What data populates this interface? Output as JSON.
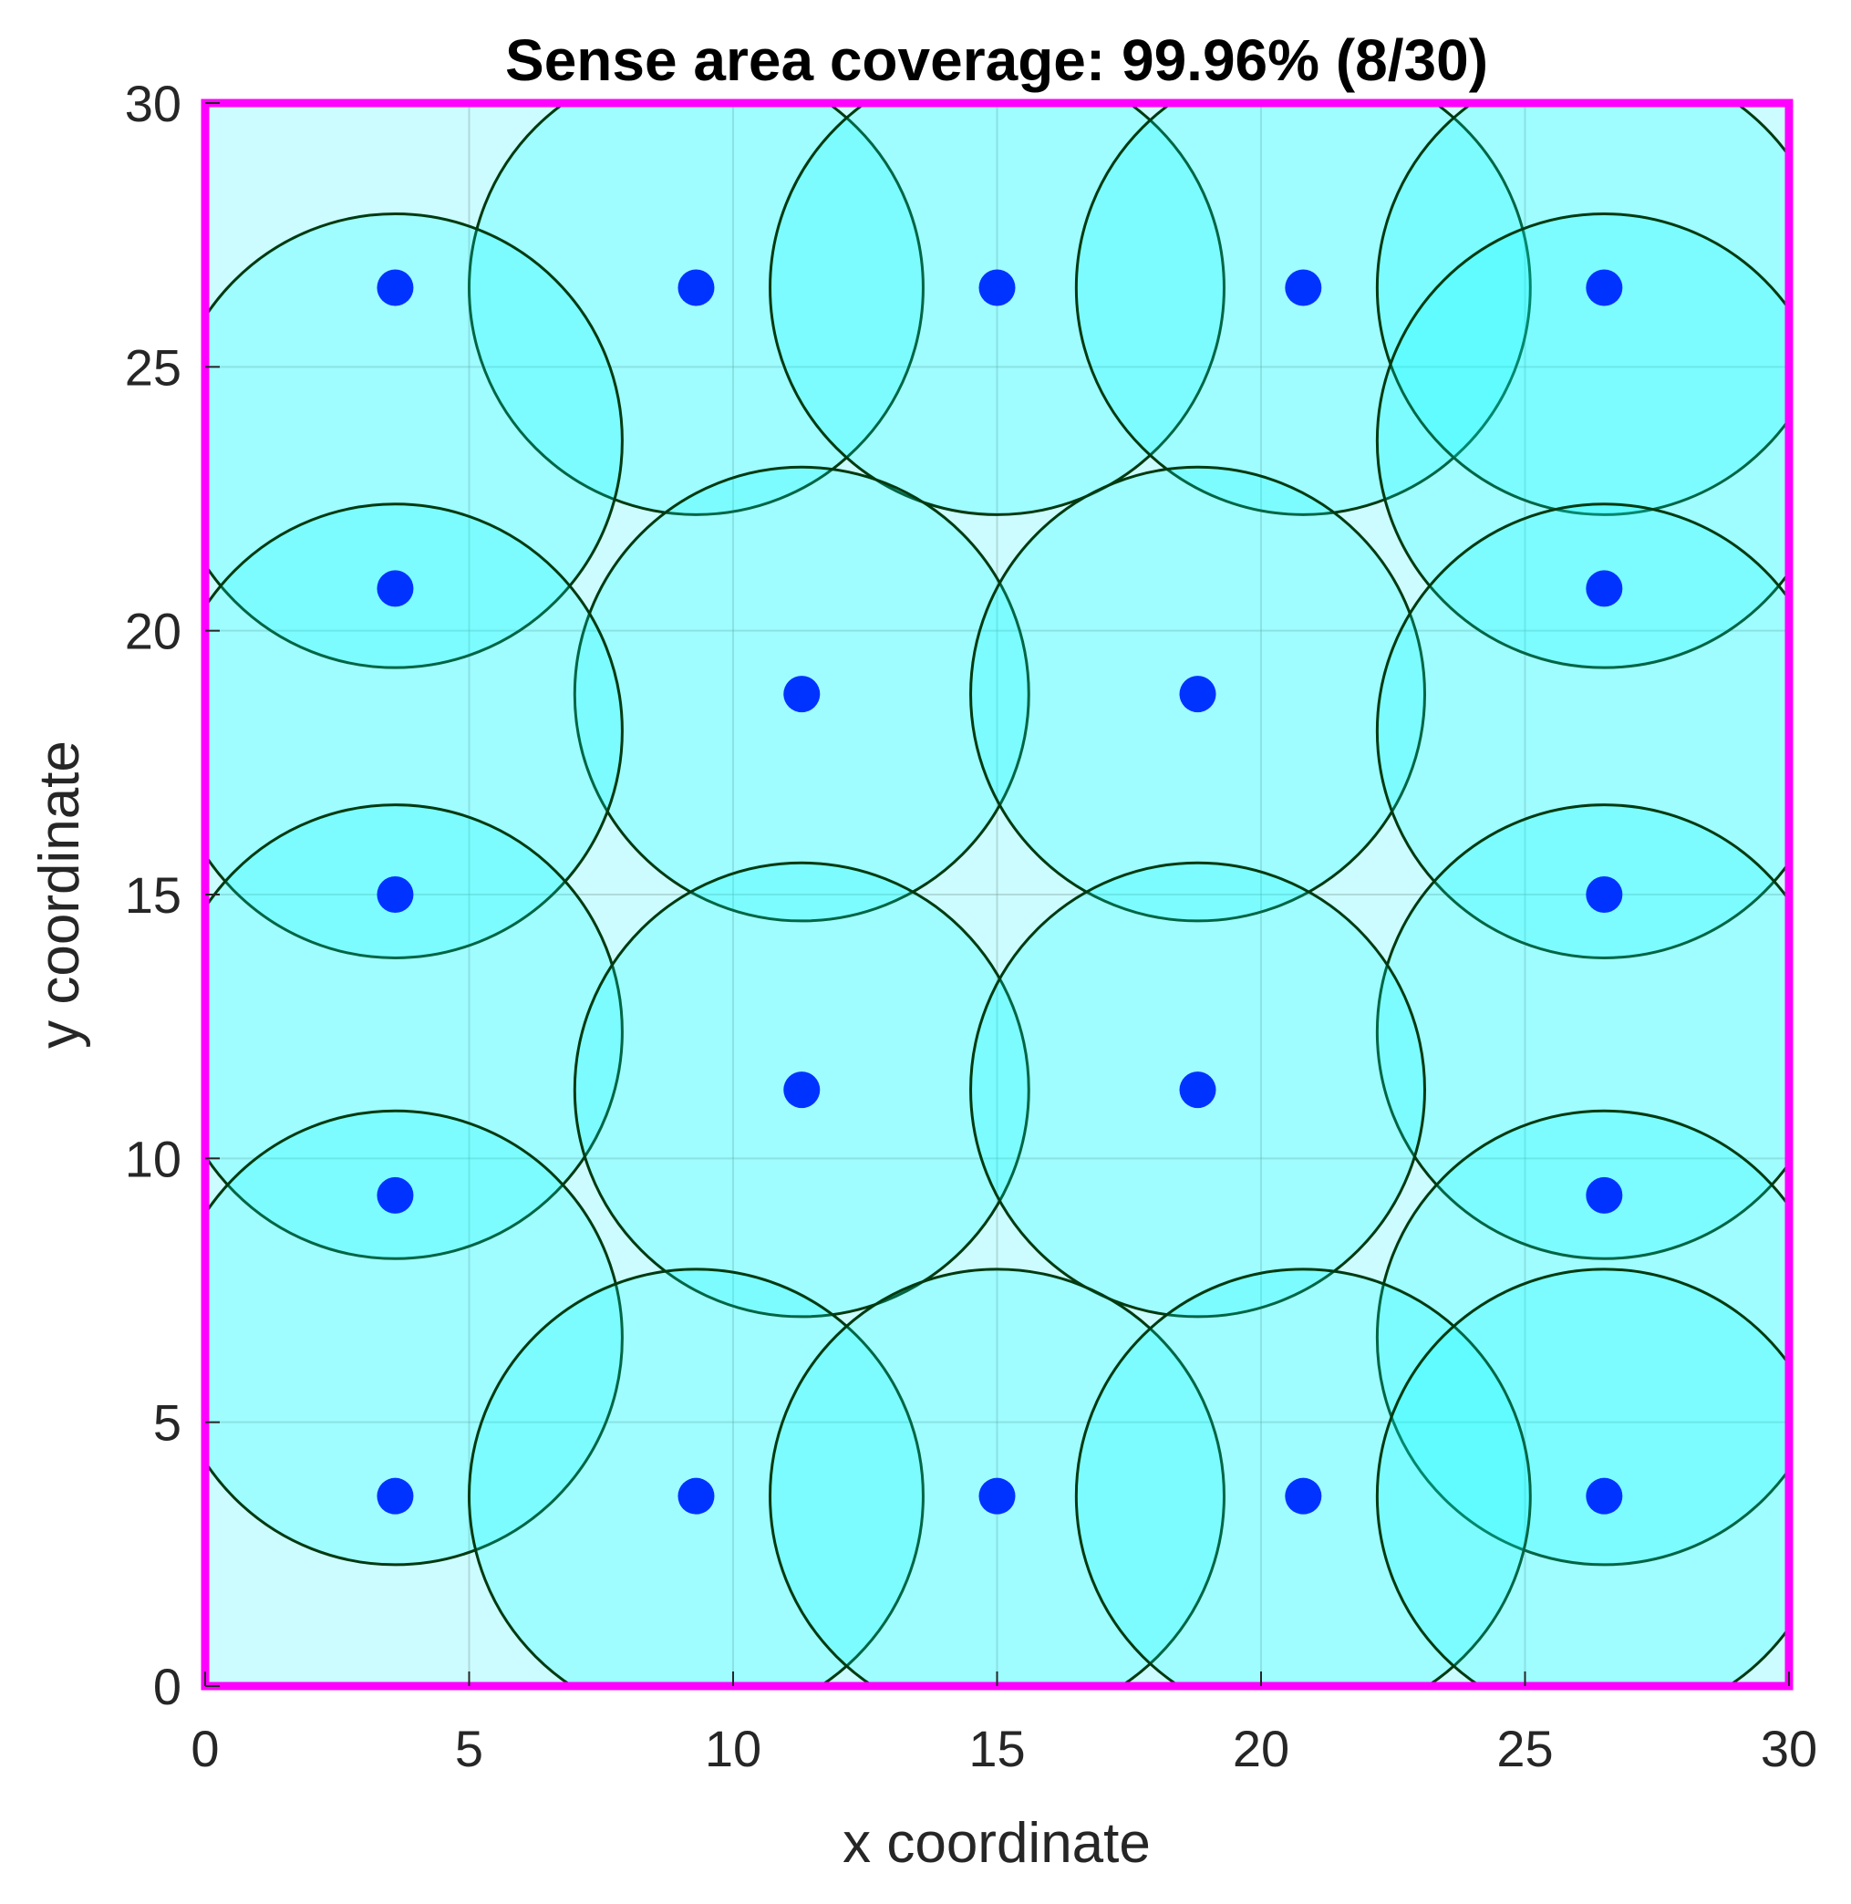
{
  "chart_data": {
    "type": "scatter",
    "title": "Sense area coverage: 99.96% (8/30)",
    "xlabel": "x coordinate",
    "ylabel": "y coordinate",
    "xlim": [
      0,
      30
    ],
    "ylim": [
      0,
      30
    ],
    "xticks": [
      0,
      5,
      10,
      15,
      20,
      25,
      30
    ],
    "yticks": [
      0,
      5,
      10,
      15,
      20,
      25,
      30
    ],
    "grid": true,
    "sensing_radius": 4.3,
    "colors": {
      "region_border": "#ff00ff",
      "region_fill": "#ccfcff",
      "coverage_fill": "#00ffff",
      "circle_edge": "#003a10",
      "sensor": "#0033ff"
    },
    "sensors": [
      {
        "x": 3.6,
        "y": 26.5
      },
      {
        "x": 9.3,
        "y": 26.5
      },
      {
        "x": 15.0,
        "y": 26.5
      },
      {
        "x": 20.8,
        "y": 26.5
      },
      {
        "x": 26.5,
        "y": 26.5
      },
      {
        "x": 3.6,
        "y": 20.8
      },
      {
        "x": 26.5,
        "y": 20.8
      },
      {
        "x": 11.3,
        "y": 18.8
      },
      {
        "x": 18.8,
        "y": 18.8
      },
      {
        "x": 3.6,
        "y": 15.0
      },
      {
        "x": 26.5,
        "y": 15.0
      },
      {
        "x": 11.3,
        "y": 11.3
      },
      {
        "x": 18.8,
        "y": 11.3
      },
      {
        "x": 3.6,
        "y": 9.3
      },
      {
        "x": 26.5,
        "y": 9.3
      },
      {
        "x": 3.6,
        "y": 3.6
      },
      {
        "x": 9.3,
        "y": 3.6
      },
      {
        "x": 15.0,
        "y": 3.6
      },
      {
        "x": 20.8,
        "y": 3.6
      },
      {
        "x": 26.5,
        "y": 3.6
      }
    ],
    "coverage_circles": [
      {
        "x": 9.3,
        "y": 26.5
      },
      {
        "x": 15.0,
        "y": 26.5
      },
      {
        "x": 20.8,
        "y": 26.5
      },
      {
        "x": 26.5,
        "y": 26.5
      },
      {
        "x": 3.6,
        "y": 23.6
      },
      {
        "x": 26.5,
        "y": 23.6
      },
      {
        "x": 11.3,
        "y": 18.8
      },
      {
        "x": 18.8,
        "y": 18.8
      },
      {
        "x": 3.6,
        "y": 18.1
      },
      {
        "x": 26.5,
        "y": 18.1
      },
      {
        "x": 3.6,
        "y": 12.4
      },
      {
        "x": 26.5,
        "y": 12.4
      },
      {
        "x": 11.3,
        "y": 11.3
      },
      {
        "x": 18.8,
        "y": 11.3
      },
      {
        "x": 3.6,
        "y": 6.6
      },
      {
        "x": 26.5,
        "y": 6.6
      },
      {
        "x": 9.3,
        "y": 3.6
      },
      {
        "x": 15.0,
        "y": 3.6
      },
      {
        "x": 20.8,
        "y": 3.6
      },
      {
        "x": 26.5,
        "y": 3.6
      }
    ]
  }
}
